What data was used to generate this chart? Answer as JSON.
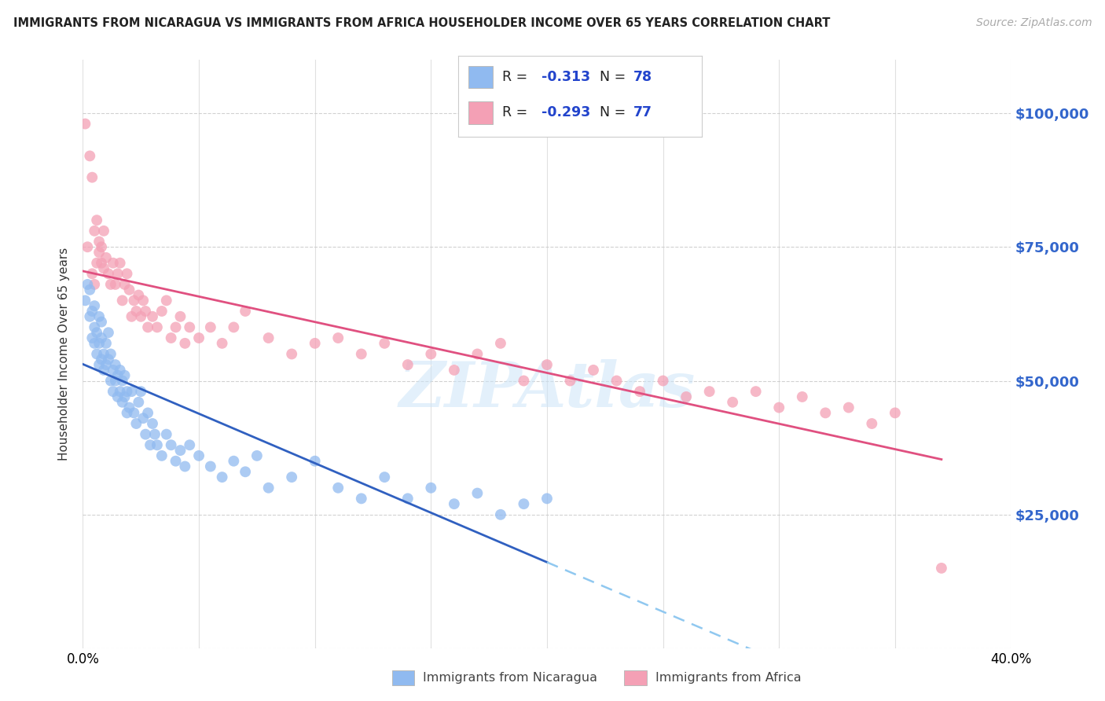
{
  "title": "IMMIGRANTS FROM NICARAGUA VS IMMIGRANTS FROM AFRICA HOUSEHOLDER INCOME OVER 65 YEARS CORRELATION CHART",
  "source": "Source: ZipAtlas.com",
  "ylabel": "Householder Income Over 65 years",
  "xlim": [
    0.0,
    0.4
  ],
  "ylim": [
    0,
    110000
  ],
  "yticks": [
    0,
    25000,
    50000,
    75000,
    100000
  ],
  "ytick_labels": [
    "",
    "$25,000",
    "$50,000",
    "$75,000",
    "$100,000"
  ],
  "xticks": [
    0.0,
    0.05,
    0.1,
    0.15,
    0.2,
    0.25,
    0.3,
    0.35,
    0.4
  ],
  "r_nicaragua": -0.313,
  "n_nicaragua": 78,
  "r_africa": -0.293,
  "n_africa": 77,
  "color_nicaragua": "#90baf0",
  "color_africa": "#f4a0b5",
  "line_color_nicaragua": "#3060c0",
  "line_color_africa": "#e05080",
  "line_color_dashed": "#90c8f0",
  "background_color": "#ffffff",
  "watermark": "ZIPAtlas",
  "nicaragua_x": [
    0.001,
    0.002,
    0.003,
    0.003,
    0.004,
    0.004,
    0.005,
    0.005,
    0.005,
    0.006,
    0.006,
    0.007,
    0.007,
    0.007,
    0.008,
    0.008,
    0.008,
    0.009,
    0.009,
    0.01,
    0.01,
    0.011,
    0.011,
    0.012,
    0.012,
    0.013,
    0.013,
    0.014,
    0.014,
    0.015,
    0.015,
    0.016,
    0.016,
    0.017,
    0.017,
    0.018,
    0.018,
    0.019,
    0.019,
    0.02,
    0.021,
    0.022,
    0.023,
    0.024,
    0.025,
    0.026,
    0.027,
    0.028,
    0.029,
    0.03,
    0.031,
    0.032,
    0.034,
    0.036,
    0.038,
    0.04,
    0.042,
    0.044,
    0.046,
    0.05,
    0.055,
    0.06,
    0.065,
    0.07,
    0.075,
    0.08,
    0.09,
    0.1,
    0.11,
    0.12,
    0.13,
    0.14,
    0.15,
    0.16,
    0.17,
    0.18,
    0.19,
    0.2
  ],
  "nicaragua_y": [
    65000,
    68000,
    62000,
    67000,
    58000,
    63000,
    60000,
    57000,
    64000,
    55000,
    59000,
    62000,
    57000,
    53000,
    58000,
    54000,
    61000,
    55000,
    52000,
    57000,
    53000,
    59000,
    54000,
    50000,
    55000,
    52000,
    48000,
    53000,
    50000,
    47000,
    51000,
    48000,
    52000,
    46000,
    50000,
    47000,
    51000,
    44000,
    48000,
    45000,
    48000,
    44000,
    42000,
    46000,
    48000,
    43000,
    40000,
    44000,
    38000,
    42000,
    40000,
    38000,
    36000,
    40000,
    38000,
    35000,
    37000,
    34000,
    38000,
    36000,
    34000,
    32000,
    35000,
    33000,
    36000,
    30000,
    32000,
    35000,
    30000,
    28000,
    32000,
    28000,
    30000,
    27000,
    29000,
    25000,
    27000,
    28000
  ],
  "africa_x": [
    0.001,
    0.002,
    0.003,
    0.004,
    0.004,
    0.005,
    0.005,
    0.006,
    0.006,
    0.007,
    0.007,
    0.008,
    0.008,
    0.009,
    0.009,
    0.01,
    0.011,
    0.012,
    0.013,
    0.014,
    0.015,
    0.016,
    0.017,
    0.018,
    0.019,
    0.02,
    0.021,
    0.022,
    0.023,
    0.024,
    0.025,
    0.026,
    0.027,
    0.028,
    0.03,
    0.032,
    0.034,
    0.036,
    0.038,
    0.04,
    0.042,
    0.044,
    0.046,
    0.05,
    0.055,
    0.06,
    0.065,
    0.07,
    0.08,
    0.09,
    0.1,
    0.11,
    0.12,
    0.13,
    0.14,
    0.15,
    0.16,
    0.17,
    0.18,
    0.19,
    0.2,
    0.21,
    0.22,
    0.23,
    0.24,
    0.25,
    0.26,
    0.27,
    0.28,
    0.29,
    0.3,
    0.31,
    0.32,
    0.33,
    0.34,
    0.35,
    0.37
  ],
  "africa_y": [
    98000,
    75000,
    92000,
    88000,
    70000,
    78000,
    68000,
    80000,
    72000,
    76000,
    74000,
    75000,
    72000,
    78000,
    71000,
    73000,
    70000,
    68000,
    72000,
    68000,
    70000,
    72000,
    65000,
    68000,
    70000,
    67000,
    62000,
    65000,
    63000,
    66000,
    62000,
    65000,
    63000,
    60000,
    62000,
    60000,
    63000,
    65000,
    58000,
    60000,
    62000,
    57000,
    60000,
    58000,
    60000,
    57000,
    60000,
    63000,
    58000,
    55000,
    57000,
    58000,
    55000,
    57000,
    53000,
    55000,
    52000,
    55000,
    57000,
    50000,
    53000,
    50000,
    52000,
    50000,
    48000,
    50000,
    47000,
    48000,
    46000,
    48000,
    45000,
    47000,
    44000,
    45000,
    42000,
    44000,
    15000
  ]
}
